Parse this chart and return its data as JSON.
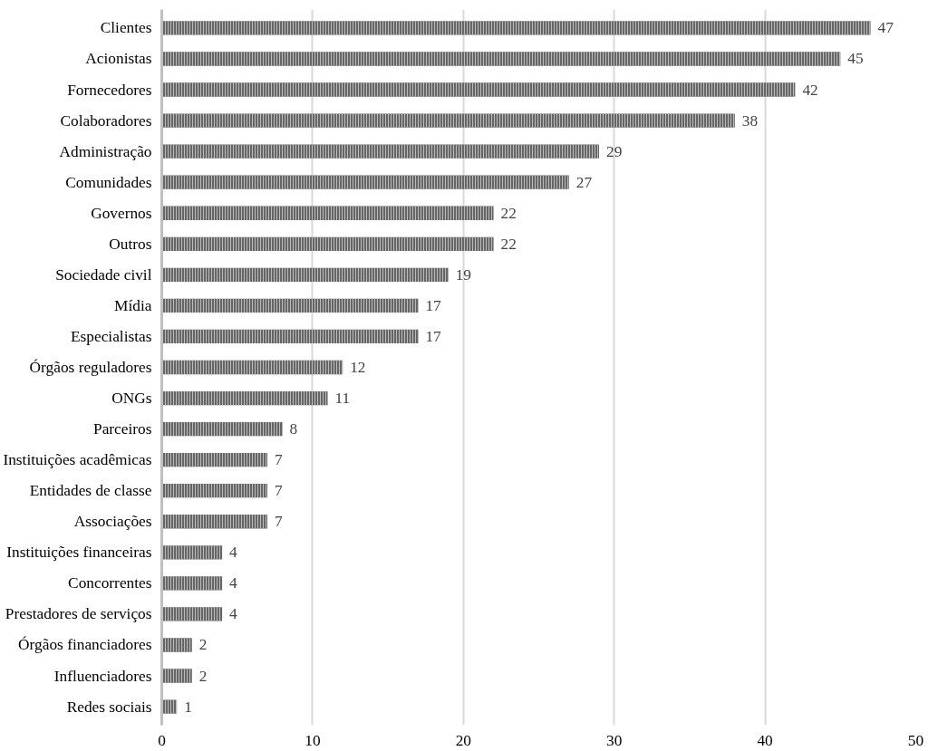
{
  "chart_data": {
    "type": "bar",
    "orientation": "horizontal",
    "categories": [
      "Clientes",
      "Acionistas",
      "Fornecedores",
      "Colaboradores",
      "Administração",
      "Comunidades",
      "Governos",
      "Outros",
      "Sociedade civil",
      "Mídia",
      "Especialistas",
      "Órgãos reguladores",
      "ONGs",
      "Parceiros",
      "Instituições acadêmicas",
      "Entidades de classe",
      "Associações",
      "Instituições financeiras",
      "Concorrentes",
      "Prestadores de serviços",
      "Órgãos financiadores",
      "Influenciadores",
      "Redes sociais"
    ],
    "values": [
      47,
      45,
      42,
      38,
      29,
      27,
      22,
      22,
      19,
      17,
      17,
      12,
      11,
      8,
      7,
      7,
      7,
      4,
      4,
      4,
      2,
      2,
      1
    ],
    "color": "#666666",
    "xlim": [
      0,
      50
    ],
    "xticks": [
      0,
      10,
      20,
      30,
      40,
      50
    ],
    "grid": "x",
    "data_labels": true
  }
}
